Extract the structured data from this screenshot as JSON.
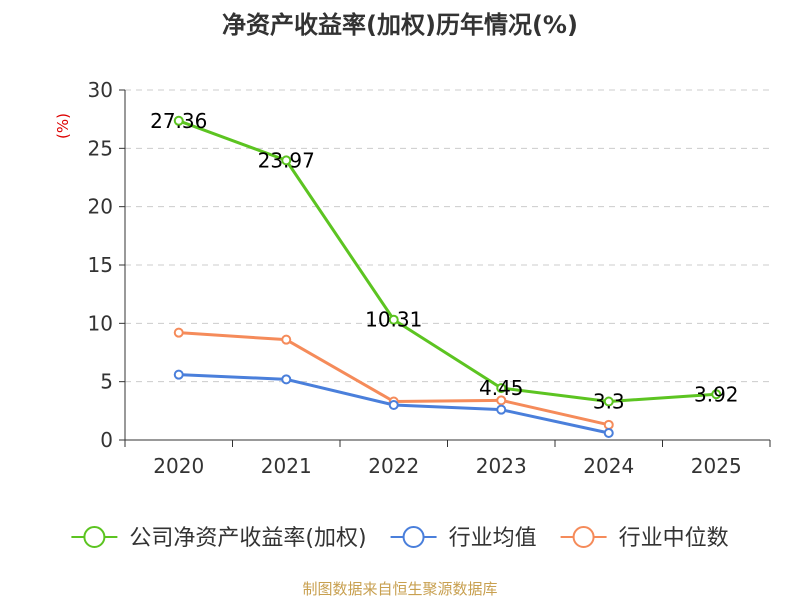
{
  "chart_data": {
    "type": "line",
    "title": "净资产收益率(加权)历年情况(%)",
    "ylabel": "(%)",
    "xlabel": "",
    "categories": [
      "2020",
      "2021",
      "2022",
      "2023",
      "2024",
      "2025"
    ],
    "ylim": [
      0,
      30
    ],
    "yticks": [
      "0",
      "5",
      "10",
      "15",
      "20",
      "25",
      "30"
    ],
    "grid": true,
    "legend_position": "bottom",
    "series": [
      {
        "name": "公司净资产收益率(加权)",
        "color": "#5cc421",
        "values": [
          27.36,
          23.97,
          10.31,
          4.45,
          3.3,
          3.92
        ],
        "labels": [
          "27.36",
          "23.97",
          "10.31",
          "4.45",
          "3.3",
          "3.92"
        ]
      },
      {
        "name": "行业均值",
        "color": "#4a7fdb",
        "values": [
          5.6,
          5.2,
          3.0,
          2.6,
          0.6,
          null
        ]
      },
      {
        "name": "行业中位数",
        "color": "#f58b5a",
        "values": [
          9.2,
          8.6,
          3.3,
          3.4,
          1.3,
          null
        ]
      }
    ],
    "source": "制图数据来自恒生聚源数据库"
  }
}
